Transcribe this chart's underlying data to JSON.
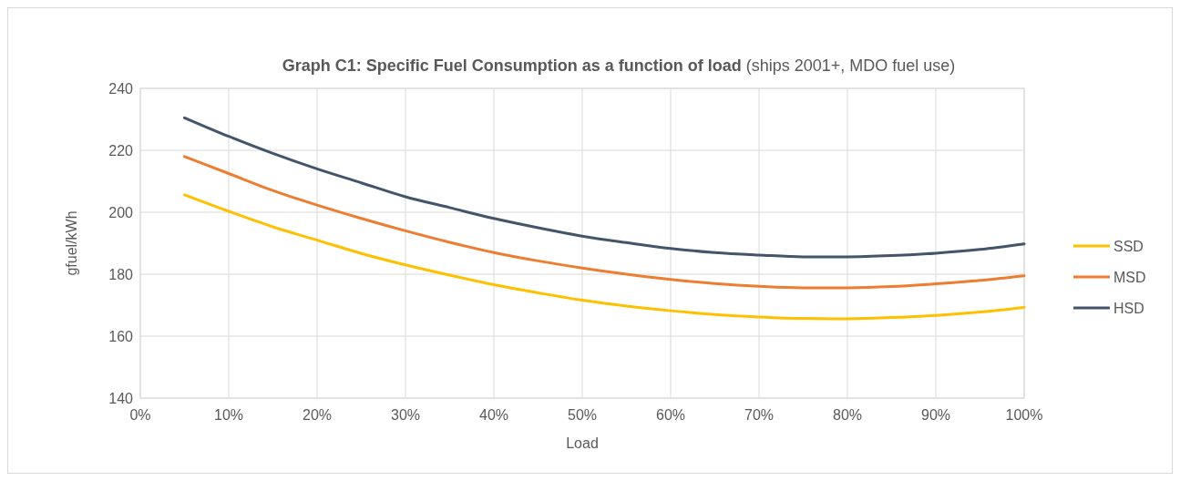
{
  "chart_data": {
    "type": "line",
    "title": "Graph C1: Specific Fuel Consumption as a function of load",
    "subtitle": "(ships 2001+, MDO fuel use)",
    "xlabel": "Load",
    "ylabel": "gfuel/kWh",
    "x": [
      5,
      10,
      15,
      20,
      25,
      30,
      35,
      40,
      45,
      50,
      55,
      60,
      65,
      70,
      75,
      80,
      85,
      90,
      95,
      100
    ],
    "series": [
      {
        "name": "SSD",
        "color": "#ffc000",
        "values": [
          205.6,
          200.3,
          195.3,
          191,
          186.7,
          183,
          179.7,
          176.6,
          174,
          171.6,
          169.7,
          168.2,
          167,
          166.2,
          165.7,
          165.6,
          166,
          166.7,
          167.8,
          169.3
        ]
      },
      {
        "name": "MSD",
        "color": "#ed7d31",
        "values": [
          218,
          212.5,
          207,
          202.3,
          198,
          194,
          190.3,
          187,
          184.3,
          182,
          180,
          178.3,
          177,
          176.1,
          175.6,
          175.6,
          176,
          176.9,
          178,
          179.5
        ]
      },
      {
        "name": "HSD",
        "color": "#44546a",
        "values": [
          230.5,
          224.5,
          219,
          214,
          209.5,
          205,
          201.5,
          198,
          195,
          192.3,
          190.2,
          188.3,
          187,
          186.2,
          185.6,
          185.6,
          186,
          186.8,
          188,
          189.8
        ]
      }
    ],
    "xlim": [
      0,
      100
    ],
    "xticks": [
      {
        "value": 0,
        "label": "0%"
      },
      {
        "value": 10,
        "label": "10%"
      },
      {
        "value": 20,
        "label": "20%"
      },
      {
        "value": 30,
        "label": "30%"
      },
      {
        "value": 40,
        "label": "40%"
      },
      {
        "value": 50,
        "label": "50%"
      },
      {
        "value": 60,
        "label": "60%"
      },
      {
        "value": 70,
        "label": "70%"
      },
      {
        "value": 80,
        "label": "80%"
      },
      {
        "value": 90,
        "label": "90%"
      },
      {
        "value": 100,
        "label": "100%"
      }
    ],
    "ylim": [
      140,
      240
    ],
    "yticks": [
      140,
      160,
      180,
      200,
      220,
      240
    ],
    "grid": true,
    "legend": "right",
    "marker": "none",
    "line_style": "solid"
  }
}
